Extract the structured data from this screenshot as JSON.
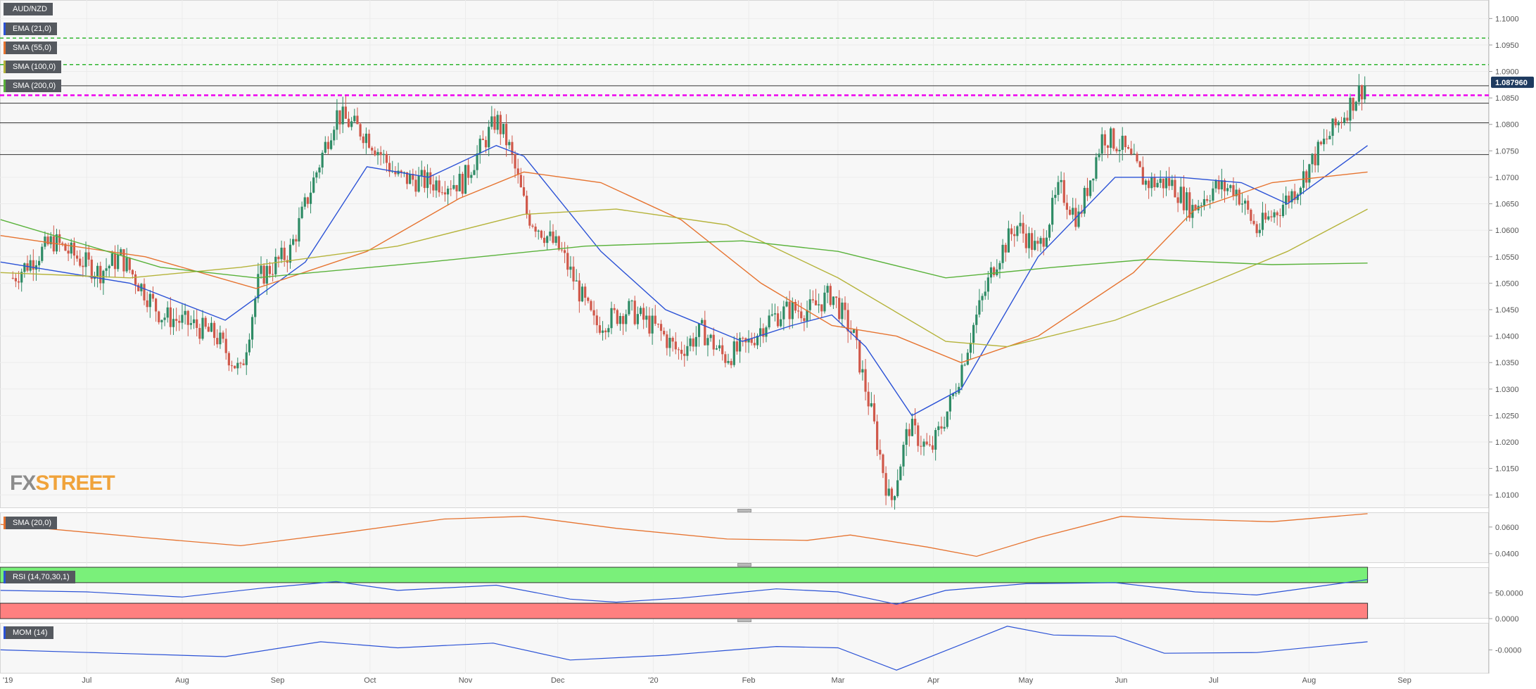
{
  "symbol": "AUD/NZD",
  "indicators": {
    "ema21": "EMA (21,0)",
    "sma55": "SMA (55,0)",
    "sma100": "SMA (100,0)",
    "sma200": "SMA (200,0)",
    "sub_sma": "SMA (20,0)",
    "rsi": "RSI (14,70,30,1)",
    "mom": "MOM (14)"
  },
  "logo": {
    "part1": "FX",
    "part2": "STREET"
  },
  "colors": {
    "bull": "#2e8b65",
    "bear": "#d0584a",
    "ema21": "#2b52d6",
    "sma55": "#e6732f",
    "sma100": "#b5b33a",
    "sma200": "#59b23a",
    "resistance": "#2fb52f",
    "magenta": "#ee00ee",
    "price_badge": "#1e3a5f",
    "rsi_over": "#7af07a",
    "rsi_under": "#ff8080"
  },
  "chart_data": {
    "type": "candlestick",
    "series_style": "daily OHLC candles with moving averages",
    "x_ticks": [
      "'19",
      "Jul",
      "Aug",
      "Sep",
      "Oct",
      "Nov",
      "Dec",
      "'20",
      "Feb",
      "Mar",
      "Apr",
      "May",
      "Jun",
      "Jul",
      "Aug",
      "Sep"
    ],
    "y_ticks": [
      "1.1000",
      "1.0950",
      "1.0900",
      "1.0850",
      "1.0800",
      "1.0750",
      "1.0700",
      "1.0650",
      "1.0600",
      "1.0550",
      "1.0500",
      "1.0450",
      "1.0400",
      "1.0350",
      "1.0300",
      "1.0250",
      "1.0200",
      "1.0150",
      "1.0100"
    ],
    "ylim": [
      1.0075,
      1.1035
    ],
    "current_price": "1.087960",
    "price_anchors": [
      {
        "date": "2019-06-07",
        "close": 1.051
      },
      {
        "date": "2019-06-20",
        "close": 1.058
      },
      {
        "date": "2019-07-05",
        "close": 1.052
      },
      {
        "date": "2019-07-12",
        "close": 1.055
      },
      {
        "date": "2019-07-25",
        "close": 1.044
      },
      {
        "date": "2019-08-05",
        "close": 1.042
      },
      {
        "date": "2019-08-12",
        "close": 1.04
      },
      {
        "date": "2019-08-20",
        "close": 1.033
      },
      {
        "date": "2019-08-26",
        "close": 1.051
      },
      {
        "date": "2019-09-05",
        "close": 1.056
      },
      {
        "date": "2019-09-13",
        "close": 1.07
      },
      {
        "date": "2019-09-20",
        "close": 1.082
      },
      {
        "date": "2019-09-30",
        "close": 1.078
      },
      {
        "date": "2019-10-10",
        "close": 1.07
      },
      {
        "date": "2019-10-21",
        "close": 1.069
      },
      {
        "date": "2019-10-31",
        "close": 1.069
      },
      {
        "date": "2019-11-11",
        "close": 1.081
      },
      {
        "date": "2019-11-15",
        "close": 1.076
      },
      {
        "date": "2019-11-21",
        "close": 1.063
      },
      {
        "date": "2019-12-02",
        "close": 1.056
      },
      {
        "date": "2019-12-13",
        "close": 1.042
      },
      {
        "date": "2019-12-24",
        "close": 1.045
      },
      {
        "date": "2020-01-03",
        "close": 1.041
      },
      {
        "date": "2020-01-09",
        "close": 1.037
      },
      {
        "date": "2020-01-17",
        "close": 1.041
      },
      {
        "date": "2020-01-24",
        "close": 1.036
      },
      {
        "date": "2020-01-31",
        "close": 1.038
      },
      {
        "date": "2020-02-07",
        "close": 1.043
      },
      {
        "date": "2020-02-14",
        "close": 1.045
      },
      {
        "date": "2020-02-21",
        "close": 1.045
      },
      {
        "date": "2020-02-28",
        "close": 1.048
      },
      {
        "date": "2020-03-06",
        "close": 1.04
      },
      {
        "date": "2020-03-12",
        "close": 1.025
      },
      {
        "date": "2020-03-18",
        "close": 1.008
      },
      {
        "date": "2020-03-24",
        "close": 1.023
      },
      {
        "date": "2020-03-31",
        "close": 1.018
      },
      {
        "date": "2020-04-07",
        "close": 1.028
      },
      {
        "date": "2020-04-14",
        "close": 1.042
      },
      {
        "date": "2020-04-21",
        "close": 1.054
      },
      {
        "date": "2020-04-28",
        "close": 1.061
      },
      {
        "date": "2020-05-05",
        "close": 1.056
      },
      {
        "date": "2020-05-12",
        "close": 1.068
      },
      {
        "date": "2020-05-18",
        "close": 1.062
      },
      {
        "date": "2020-05-26",
        "close": 1.078
      },
      {
        "date": "2020-06-01",
        "close": 1.076
      },
      {
        "date": "2020-06-09",
        "close": 1.069
      },
      {
        "date": "2020-06-17",
        "close": 1.069
      },
      {
        "date": "2020-06-24",
        "close": 1.064
      },
      {
        "date": "2020-07-01",
        "close": 1.068
      },
      {
        "date": "2020-07-08",
        "close": 1.068
      },
      {
        "date": "2020-07-15",
        "close": 1.06
      },
      {
        "date": "2020-07-22",
        "close": 1.064
      },
      {
        "date": "2020-07-28",
        "close": 1.068
      },
      {
        "date": "2020-08-03",
        "close": 1.074
      },
      {
        "date": "2020-08-10",
        "close": 1.08
      },
      {
        "date": "2020-08-17",
        "close": 1.086
      },
      {
        "date": "2020-08-20",
        "close": 1.088
      }
    ],
    "horizontal_levels": [
      {
        "kind": "dashed",
        "value": 1.0963
      },
      {
        "kind": "dashed",
        "value": 1.0913
      },
      {
        "kind": "solid",
        "value": 1.0873
      },
      {
        "kind": "magenta-dashed",
        "value": 1.0855
      },
      {
        "kind": "solid",
        "value": 1.084
      },
      {
        "kind": "solid",
        "value": 1.0803
      },
      {
        "kind": "solid",
        "value": 1.0743
      }
    ],
    "ma_lines": {
      "ema21": [
        [
          "2019-06-03",
          1.054
        ],
        [
          "2019-07-15",
          1.05
        ],
        [
          "2019-08-15",
          1.043
        ],
        [
          "2019-09-10",
          1.054
        ],
        [
          "2019-09-30",
          1.072
        ],
        [
          "2019-10-20",
          1.07
        ],
        [
          "2019-11-11",
          1.076
        ],
        [
          "2019-11-20",
          1.074
        ],
        [
          "2019-12-15",
          1.056
        ],
        [
          "2020-01-05",
          1.045
        ],
        [
          "2020-01-30",
          1.039
        ],
        [
          "2020-02-15",
          1.042
        ],
        [
          "2020-02-28",
          1.044
        ],
        [
          "2020-03-10",
          1.038
        ],
        [
          "2020-03-25",
          1.025
        ],
        [
          "2020-04-10",
          1.03
        ],
        [
          "2020-05-05",
          1.055
        ],
        [
          "2020-05-30",
          1.07
        ],
        [
          "2020-06-20",
          1.07
        ],
        [
          "2020-07-10",
          1.069
        ],
        [
          "2020-07-25",
          1.065
        ],
        [
          "2020-08-20",
          1.076
        ]
      ],
      "sma55": [
        [
          "2019-06-03",
          1.059
        ],
        [
          "2019-07-20",
          1.055
        ],
        [
          "2019-08-25",
          1.049
        ],
        [
          "2019-09-30",
          1.056
        ],
        [
          "2019-10-30",
          1.066
        ],
        [
          "2019-11-20",
          1.071
        ],
        [
          "2019-12-15",
          1.069
        ],
        [
          "2020-01-10",
          1.062
        ],
        [
          "2020-02-05",
          1.05
        ],
        [
          "2020-02-28",
          1.042
        ],
        [
          "2020-03-20",
          1.04
        ],
        [
          "2020-04-10",
          1.035
        ],
        [
          "2020-05-05",
          1.04
        ],
        [
          "2020-06-05",
          1.052
        ],
        [
          "2020-06-25",
          1.064
        ],
        [
          "2020-07-20",
          1.069
        ],
        [
          "2020-08-20",
          1.071
        ]
      ],
      "sma100": [
        [
          "2019-06-03",
          1.052
        ],
        [
          "2019-07-15",
          1.051
        ],
        [
          "2019-08-20",
          1.053
        ],
        [
          "2019-10-10",
          1.057
        ],
        [
          "2019-11-20",
          1.063
        ],
        [
          "2019-12-20",
          1.064
        ],
        [
          "2020-01-25",
          1.061
        ],
        [
          "2020-03-01",
          1.051
        ],
        [
          "2020-04-05",
          1.039
        ],
        [
          "2020-04-25",
          1.038
        ],
        [
          "2020-05-30",
          1.043
        ],
        [
          "2020-06-30",
          1.05
        ],
        [
          "2020-07-25",
          1.056
        ],
        [
          "2020-08-20",
          1.064
        ]
      ],
      "sma200": [
        [
          "2019-06-03",
          1.062
        ],
        [
          "2019-07-25",
          1.053
        ],
        [
          "2019-08-25",
          1.051
        ],
        [
          "2019-10-20",
          1.054
        ],
        [
          "2019-12-10",
          1.057
        ],
        [
          "2020-01-30",
          1.058
        ],
        [
          "2020-03-01",
          1.056
        ],
        [
          "2020-04-05",
          1.051
        ],
        [
          "2020-05-10",
          1.053
        ],
        [
          "2020-06-10",
          1.0545
        ],
        [
          "2020-07-20",
          1.0535
        ],
        [
          "2020-08-20",
          1.0538
        ]
      ]
    },
    "sub_sma": {
      "y_ticks": [
        "0.0600",
        "0.0400"
      ],
      "series": [
        [
          "2019-06-03",
          0.062
        ],
        [
          "2019-07-20",
          0.052
        ],
        [
          "2019-08-20",
          0.046
        ],
        [
          "2019-09-20",
          0.055
        ],
        [
          "2019-10-25",
          0.066
        ],
        [
          "2019-11-20",
          0.068
        ],
        [
          "2019-12-20",
          0.059
        ],
        [
          "2020-01-25",
          0.051
        ],
        [
          "2020-02-20",
          0.05
        ],
        [
          "2020-03-05",
          0.054
        ],
        [
          "2020-03-30",
          0.045
        ],
        [
          "2020-04-15",
          0.038
        ],
        [
          "2020-05-05",
          0.052
        ],
        [
          "2020-06-01",
          0.068
        ],
        [
          "2020-06-20",
          0.066
        ],
        [
          "2020-07-20",
          0.064
        ],
        [
          "2020-08-20",
          0.07
        ]
      ]
    },
    "rsi": {
      "y_ticks": [
        "50.0000",
        "0.0000"
      ],
      "overbought": 70,
      "oversold": 30,
      "series": [
        [
          "2019-06-03",
          55
        ],
        [
          "2019-07-01",
          52
        ],
        [
          "2019-08-01",
          42
        ],
        [
          "2019-08-28",
          60
        ],
        [
          "2019-09-20",
          72
        ],
        [
          "2019-10-10",
          55
        ],
        [
          "2019-11-11",
          65
        ],
        [
          "2019-12-05",
          38
        ],
        [
          "2019-12-20",
          32
        ],
        [
          "2020-01-10",
          40
        ],
        [
          "2020-02-10",
          58
        ],
        [
          "2020-03-01",
          52
        ],
        [
          "2020-03-20",
          28
        ],
        [
          "2020-04-05",
          55
        ],
        [
          "2020-05-01",
          68
        ],
        [
          "2020-05-30",
          70
        ],
        [
          "2020-06-25",
          52
        ],
        [
          "2020-07-15",
          46
        ],
        [
          "2020-08-20",
          76
        ]
      ]
    },
    "mom": {
      "y_ticks": [
        "-0.0000"
      ],
      "series": [
        [
          "2019-06-03",
          0.0
        ],
        [
          "2019-07-10",
          -0.005
        ],
        [
          "2019-08-15",
          -0.01
        ],
        [
          "2019-09-15",
          0.012
        ],
        [
          "2019-10-10",
          0.003
        ],
        [
          "2019-11-10",
          0.01
        ],
        [
          "2019-12-05",
          -0.015
        ],
        [
          "2020-01-05",
          -0.008
        ],
        [
          "2020-02-10",
          0.005
        ],
        [
          "2020-03-01",
          0.003
        ],
        [
          "2020-03-20",
          -0.03
        ],
        [
          "2020-04-25",
          0.035
        ],
        [
          "2020-05-10",
          0.022
        ],
        [
          "2020-05-30",
          0.02
        ],
        [
          "2020-06-15",
          -0.005
        ],
        [
          "2020-07-15",
          -0.004
        ],
        [
          "2020-08-20",
          0.012
        ]
      ]
    }
  }
}
